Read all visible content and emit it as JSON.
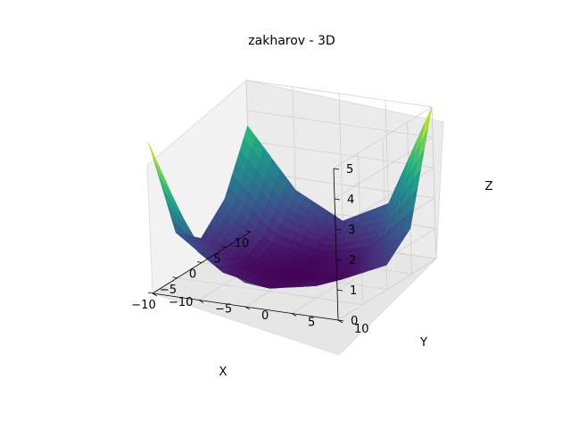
{
  "chart_data": {
    "type": "surface3d",
    "title": "zakharov - 3D",
    "xlabel": "X",
    "ylabel": "Y",
    "zlabel": "Z",
    "xlim": [
      -10,
      10
    ],
    "ylim": [
      -10,
      10
    ],
    "zlim": [
      0,
      5
    ],
    "xticks": [
      "−10",
      "−5",
      "0",
      "5",
      "10"
    ],
    "yticks": [
      "−10",
      "−5",
      "0",
      "5",
      "10"
    ],
    "zticks": [
      "0",
      "1",
      "2",
      "3",
      "4",
      "5"
    ],
    "colormap": "viridis",
    "grid": true,
    "surface": {
      "x": [
        -10,
        -5,
        0,
        5,
        10
      ],
      "y": [
        -10,
        -5,
        0,
        5,
        10
      ],
      "z": [
        [
          5.0,
          1.6,
          0.8,
          1.6,
          3.5
        ],
        [
          1.5,
          0.4,
          0.1,
          0.4,
          1.6
        ],
        [
          0.8,
          0.1,
          0.0,
          0.1,
          0.8
        ],
        [
          1.6,
          0.4,
          0.1,
          0.4,
          1.5
        ],
        [
          3.5,
          1.6,
          0.8,
          1.6,
          5.0
        ]
      ]
    }
  }
}
